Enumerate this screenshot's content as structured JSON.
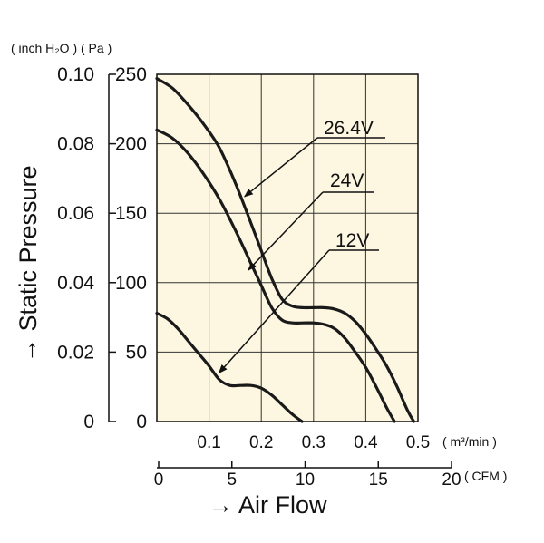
{
  "chart_data": {
    "type": "line",
    "units_top_left": "( inch H₂O ) ( Pa )",
    "xlabel": "→ Air Flow",
    "ylabel": "→ Static Pressure",
    "x_unit_primary": "( m³/min )",
    "x_unit_secondary": "( CFM )",
    "xlim": [
      0,
      0.5
    ],
    "ylim": [
      0,
      250
    ],
    "x_ticks_primary": [
      "0.1",
      "0.2",
      "0.3",
      "0.4",
      "0.5"
    ],
    "x_ticks_secondary": [
      "0",
      "5",
      "10",
      "15",
      "20"
    ],
    "y_ticks_pa": [
      "0",
      "50",
      "100",
      "150",
      "200",
      "250"
    ],
    "y_ticks_inch": [
      "0",
      "0.02",
      "0.04",
      "0.06",
      "0.08",
      "0.10"
    ],
    "grid": true,
    "series": [
      {
        "name": "26.4V",
        "x": [
          0,
          0.03,
          0.06,
          0.09,
          0.12,
          0.15,
          0.18,
          0.2,
          0.22,
          0.24,
          0.26,
          0.28,
          0.3,
          0.32,
          0.34,
          0.36,
          0.38,
          0.4,
          0.42,
          0.44,
          0.46,
          0.48,
          0.492
        ],
        "y": [
          247,
          240,
          228,
          214,
          197,
          172,
          143,
          123,
          103,
          88,
          83,
          82,
          82,
          82,
          81,
          78,
          72,
          63,
          52,
          40,
          25,
          8,
          0
        ]
      },
      {
        "name": "24V",
        "x": [
          0,
          0.03,
          0.06,
          0.09,
          0.12,
          0.15,
          0.18,
          0.2,
          0.22,
          0.24,
          0.26,
          0.28,
          0.3,
          0.32,
          0.34,
          0.36,
          0.38,
          0.4,
          0.42,
          0.44,
          0.455
        ],
        "y": [
          210,
          204,
          193,
          178,
          160,
          138,
          114,
          98,
          82,
          73,
          71,
          71,
          71,
          70,
          67,
          60,
          50,
          39,
          25,
          10,
          0
        ]
      },
      {
        "name": "12V",
        "x": [
          0,
          0.02,
          0.04,
          0.06,
          0.08,
          0.1,
          0.12,
          0.14,
          0.16,
          0.18,
          0.2,
          0.22,
          0.24,
          0.26,
          0.278
        ],
        "y": [
          78,
          74,
          67,
          58,
          49,
          40,
          30,
          26,
          26,
          26,
          24,
          19,
          12,
          5,
          0
        ]
      }
    ],
    "annotations": [
      {
        "series": "26.4V",
        "text": "26.4V"
      },
      {
        "series": "24V",
        "text": "24V"
      },
      {
        "series": "12V",
        "text": "12V"
      }
    ]
  }
}
